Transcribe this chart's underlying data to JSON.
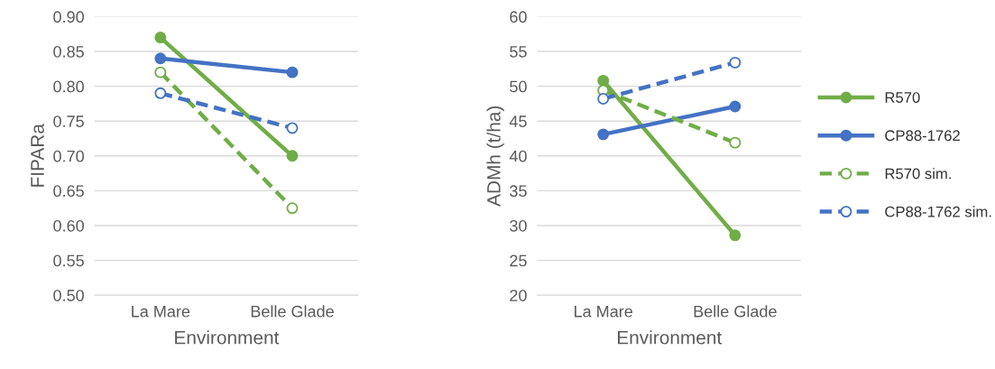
{
  "chart_data": [
    {
      "type": "line",
      "xlabel": "Environment",
      "ylabel": "FIPARa",
      "categories": [
        "La Mare",
        "Belle Glade"
      ],
      "ylim": [
        0.5,
        0.9
      ],
      "yticks": [
        {
          "value": 0.5,
          "label": "0.50"
        },
        {
          "value": 0.55,
          "label": "0.55"
        },
        {
          "value": 0.6,
          "label": "0.60"
        },
        {
          "value": 0.65,
          "label": "0.65"
        },
        {
          "value": 0.7,
          "label": "0.70"
        },
        {
          "value": 0.75,
          "label": "0.75"
        },
        {
          "value": 0.8,
          "label": "0.80"
        },
        {
          "value": 0.85,
          "label": "0.85"
        },
        {
          "value": 0.9,
          "label": "0.90"
        }
      ],
      "grid": "y",
      "marker": "circle",
      "legend": false,
      "series": [
        {
          "color": "#70ad47",
          "values": [
            0.87,
            0.7
          ],
          "line_style": "solid"
        },
        {
          "color": "#4472c4",
          "values": [
            0.84,
            0.82
          ],
          "line_style": "solid"
        },
        {
          "color": "#70ad47",
          "values": [
            0.82,
            0.625
          ],
          "line_style": "dashed"
        },
        {
          "color": "#4472c4",
          "values": [
            0.79,
            0.74
          ],
          "line_style": "dashed"
        }
      ]
    },
    {
      "type": "line",
      "xlabel": "Environment",
      "ylabel": "ADMh (t/ha)",
      "categories": [
        "La Mare",
        "Belle Glade"
      ],
      "ylim": [
        20,
        60
      ],
      "yticks": [
        20,
        25,
        30,
        35,
        40,
        45,
        50,
        55,
        60
      ],
      "grid": "y",
      "marker": "circle",
      "legend": "right",
      "series": [
        {
          "name": "R570",
          "color": "#70ad47",
          "values": [
            50.8,
            28.6
          ],
          "line_style": "solid"
        },
        {
          "name": "CP88-1762",
          "color": "#4472c4",
          "values": [
            43.1,
            47.1
          ],
          "line_style": "solid"
        },
        {
          "name": "R570 sim.",
          "color": "#70ad47",
          "values": [
            49.4,
            41.9
          ],
          "line_style": "dashed"
        },
        {
          "name": "CP88-1762 sim.",
          "color": "#4472c4",
          "values": [
            48.2,
            53.4
          ],
          "line_style": "dashed"
        }
      ]
    }
  ]
}
